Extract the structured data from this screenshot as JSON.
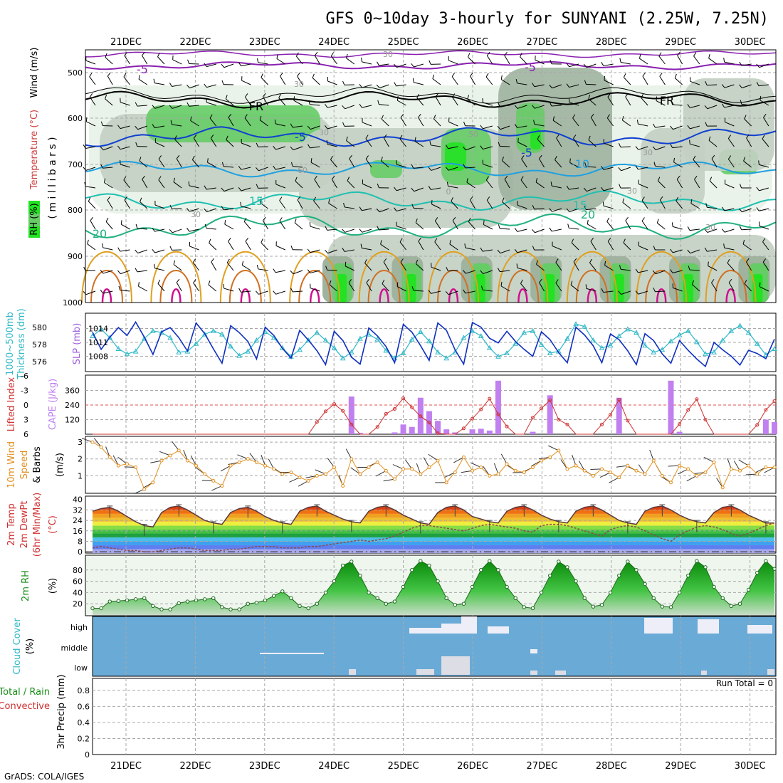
{
  "title": "GFS 0~10day 3-hourly for SUNYANI (2.25W, 7.25N)",
  "footer": "GrADS: COLA/IGES",
  "dates": [
    "21DEC",
    "22DEC",
    "23DEC",
    "24DEC",
    "25DEC",
    "26DEC",
    "27DEC",
    "28DEC",
    "29DEC",
    "30DEC"
  ],
  "colors": {
    "grid": "#a8a8a8",
    "rh1": "#e8f2e8",
    "rh2": "#c2cfc2",
    "rh3": "#9fb39f",
    "rh4": "#66cc66",
    "rh5": "#22e222",
    "slp": "#1030c0",
    "thick": "#30b8c8",
    "lifted": "#d03030",
    "cape": "#c080f0",
    "wind": "#e09020",
    "cloud_bg": "#6aaad6",
    "cloud_fill": "#eeeef8",
    "rh2m": "#1a8f1a",
    "dewpt": "#8a4c4c"
  },
  "panels": {
    "upper": {
      "label_rh": "RH (%)",
      "label_temp": "Temperature (°C)",
      "label_wind": "Wind (m/s)",
      "label_mb": "( m i l l i b a r s )",
      "levels": [
        "500",
        "600",
        "700",
        "800",
        "900",
        "1000"
      ],
      "contour_labels": [
        "-5",
        "-5",
        "FR",
        "FR",
        "-5",
        "-5",
        "-10",
        "15",
        "15",
        "20",
        "20"
      ],
      "rh_labels": [
        "30",
        "30",
        "30",
        "30",
        "30",
        "30",
        "30",
        "50",
        "60",
        "0"
      ]
    },
    "thickness": {
      "label_left": "1000~500mb",
      "label_left2": "Thickness (dm)",
      "label_right": "SLP (mb)",
      "left_ticks": [
        "580",
        "578",
        "576"
      ],
      "right_ticks": [
        "1014",
        "1011",
        "1008"
      ]
    },
    "cape": {
      "label_left": "Lifted Index",
      "label_right": "CAPE (J/kg)",
      "left_ticks": [
        "-6",
        "-3",
        "0",
        "3",
        "6"
      ],
      "right_ticks": [
        "360",
        "240",
        "120"
      ]
    },
    "wind10m": {
      "label_a": "10m Wind",
      "label_b": "Speed",
      "label_c": "& Barbs",
      "label_unit": "(m/s)",
      "ticks": [
        "3",
        "2",
        "1"
      ]
    },
    "temp2m": {
      "label_a": "2m Temp",
      "label_b": "2m DewPt",
      "label_c": "(6hr Min/Max)",
      "label_unit": "(°C)",
      "ticks": [
        "40",
        "32",
        "24",
        "16",
        "8",
        "0"
      ]
    },
    "rh2m": {
      "label": "2m RH",
      "label_unit": "(%)",
      "ticks": [
        "80",
        "60",
        "40",
        "20"
      ]
    },
    "cloud": {
      "label": "Cloud Cover",
      "label_unit": "(%)",
      "ticks": [
        "high",
        "middle",
        "low"
      ]
    },
    "precip": {
      "label_a": "Total / Rain",
      "label_b": "Convective",
      "label_unit": "3hr Precip (mm)",
      "ticks": [
        "0.8",
        "0.6",
        "0.4",
        "0.2",
        "0"
      ],
      "run_total": "Run Total = 0"
    }
  },
  "chart_data": [
    {
      "type": "line",
      "title": "SLP (mb)",
      "ylim": [
        1005,
        1017
      ],
      "values": [
        1013.2,
        1009.5,
        1012.1,
        1014.2,
        1012.5,
        1015.4,
        1012.1,
        1008.4,
        1013.3,
        1014.2,
        1012.0,
        1009.1,
        1015.2,
        1012.9,
        1009.6,
        1006.5,
        1014.6,
        1013.1,
        1011.2,
        1007.4,
        1014.3,
        1012.5,
        1009.7,
        1007.6,
        1013.6,
        1011.5,
        1009.2,
        1006.2,
        1013.4,
        1011.4,
        1007.8,
        1006.3,
        1014.1,
        1012.4,
        1010.1,
        1006.6,
        1014.9,
        1013.2,
        1010.3,
        1007.1,
        1015.2,
        1013.6,
        1009.4,
        1006.3,
        1015.3,
        1014.3,
        1011.9,
        1010.9,
        1013.4,
        1011.2,
        1009.5,
        1008.0,
        1013.3,
        1011.6,
        1008.8,
        1006.6,
        1014.3,
        1012.6,
        1010.3,
        1006.6,
        1012.8,
        1011.6,
        1009.2,
        1006.2,
        1012.9,
        1011.4,
        1008.5,
        1006.5,
        1011.4,
        1009.3,
        1007.4,
        1005.8,
        1011.0,
        1009.4,
        1008.0,
        1006.1,
        1009.3,
        1008.6,
        1007.5,
        1011.7
      ]
    },
    {
      "type": "line",
      "title": "1000~500mb Thickness (dm)",
      "ylim": [
        575,
        581.5
      ],
      "values": [
        579.0,
        579.8,
        578.8,
        577.5,
        576.9,
        577.2,
        578.7,
        579.6,
        579.4,
        578.8,
        577.1,
        577.2,
        578.1,
        579.2,
        579.6,
        579.2,
        577.8,
        576.7,
        577.2,
        578.5,
        579.5,
        578.8,
        577.6,
        576.6,
        577.4,
        578.5,
        579.4,
        578.5,
        577.6,
        576.4,
        577.1,
        578.7,
        579.2,
        578.6,
        577.3,
        576.4,
        577.0,
        578.6,
        579.5,
        578.4,
        577.1,
        576.4,
        577.1,
        578.8,
        579.6,
        579.0,
        577.6,
        576.6,
        577.0,
        578.1,
        579.4,
        579.6,
        578.0,
        577.0,
        577.2,
        578.7,
        580.4,
        580.1,
        578.5,
        577.6,
        577.9,
        579.0,
        579.8,
        579.4,
        577.9,
        577.1,
        577.4,
        578.4,
        579.1,
        579.6,
        578.3,
        576.9,
        577.1,
        578.5,
        579.6,
        580.2,
        579.4,
        578.1,
        576.8,
        577.5
      ]
    },
    {
      "type": "bar",
      "title": "CAPE (J/kg)",
      "ylim": [
        0,
        480
      ],
      "values": [
        0,
        0,
        0,
        0,
        0,
        0,
        0,
        0,
        0,
        0,
        0,
        0,
        0,
        0,
        0,
        0,
        0,
        0,
        0,
        0,
        0,
        0,
        0,
        0,
        0,
        0,
        0,
        0,
        0,
        0,
        0,
        0,
        0,
        0,
        0,
        0,
        0,
        0,
        0,
        0,
        0,
        0,
        0,
        0,
        0,
        0,
        0,
        0,
        0,
        0,
        0,
        0,
        0,
        0,
        0,
        0,
        0,
        0,
        0,
        0,
        0,
        0,
        0,
        0,
        0,
        0,
        0,
        0,
        0,
        0,
        0,
        0,
        0,
        0,
        0,
        0,
        0,
        0,
        0,
        0
      ],
      "spikes": [
        [
          30,
          310
        ],
        [
          31,
          10
        ],
        [
          35,
          15
        ],
        [
          36,
          80
        ],
        [
          37,
          60
        ],
        [
          38,
          300
        ],
        [
          39,
          190
        ],
        [
          40,
          110
        ],
        [
          41,
          40
        ],
        [
          42,
          15
        ],
        [
          44,
          40
        ],
        [
          45,
          45
        ],
        [
          46,
          30
        ],
        [
          47,
          440
        ],
        [
          51,
          20
        ],
        [
          53,
          320
        ],
        [
          61,
          300
        ],
        [
          67,
          440
        ],
        [
          68,
          20
        ],
        [
          69,
          0
        ],
        [
          70,
          0
        ],
        [
          71,
          0
        ],
        [
          72,
          0
        ],
        [
          73,
          0
        ],
        [
          74,
          0
        ],
        [
          75,
          0
        ],
        [
          76,
          0
        ],
        [
          77,
          0
        ],
        [
          78,
          120
        ],
        [
          79,
          100
        ]
      ]
    },
    {
      "type": "line",
      "title": "Lifted Index",
      "ylim": [
        -6,
        6
      ],
      "values": [
        6,
        6,
        6,
        6,
        6,
        6,
        6,
        6,
        6,
        6,
        6,
        6,
        6,
        6,
        6,
        6,
        6,
        6,
        6,
        6,
        6,
        6,
        6,
        6,
        6,
        6,
        3.5,
        1.3,
        -0.2,
        1.2,
        4.0,
        6,
        6,
        4.5,
        1.8,
        0.8,
        -1.4,
        0.5,
        2.3,
        3.6,
        5.8,
        6,
        6,
        4.8,
        2.8,
        0.9,
        -1.3,
        1.9,
        4.4,
        6,
        6,
        2.6,
        0.7,
        -1.0,
        3.0,
        4.0,
        6,
        6,
        6,
        4.0,
        2.0,
        -1.1,
        3.2,
        6,
        6,
        6,
        6,
        6,
        3.9,
        1.0,
        -1.2,
        3.0,
        6,
        6,
        6,
        6,
        6,
        4.1,
        1.0,
        -0.8
      ]
    },
    {
      "type": "line",
      "title": "10m Wind Speed (m/s)",
      "ylim": [
        0,
        3.3
      ],
      "values": [
        3.0,
        2.7,
        2.1,
        1.6,
        1.7,
        1.5,
        0.2,
        0.6,
        1.9,
        2.2,
        2.5,
        1.9,
        1.6,
        1.1,
        0.7,
        0.4,
        1.6,
        1.8,
        2.0,
        1.8,
        1.6,
        1.4,
        1.1,
        1.2,
        0.9,
        0.7,
        1.0,
        1.1,
        1.5,
        0.4,
        2.0,
        1.1,
        1.5,
        1.8,
        1.3,
        0.8,
        1.4,
        1.4,
        1.1,
        1.5,
        1.9,
        0.6,
        1.2,
        2.1,
        1.3,
        1.5,
        1.0,
        1.1,
        1.7,
        1.3,
        1.2,
        1.5,
        1.9,
        2.1,
        2.5,
        1.4,
        1.6,
        1.3,
        1.0,
        1.4,
        1.2,
        0.9,
        1.6,
        1.3,
        1.1,
        1.9,
        1.0,
        0.6,
        1.6,
        1.4,
        1.0,
        1.2,
        1.8,
        0.3,
        1.4,
        1.3,
        1.6,
        1.1,
        1.5,
        1.5
      ]
    },
    {
      "type": "area",
      "title": "2m Temp (°C)",
      "ylim": [
        -1,
        42
      ],
      "values": [
        31,
        33,
        34,
        31,
        27,
        23,
        20,
        19,
        30,
        34,
        35,
        32,
        28,
        24,
        22,
        21,
        30,
        33,
        34,
        31,
        27,
        24,
        22,
        21,
        31,
        34,
        35,
        31,
        28,
        25,
        23,
        22,
        31,
        34,
        35,
        32,
        28,
        25,
        22,
        21,
        30,
        34,
        35,
        32,
        27,
        25,
        23,
        22,
        31,
        34,
        35,
        32,
        28,
        25,
        23,
        22,
        31,
        34,
        35,
        32,
        28,
        24,
        22,
        21,
        31,
        34,
        35,
        32,
        28,
        25,
        23,
        22,
        30,
        34,
        35,
        32,
        28,
        25,
        22,
        22
      ],
      "dewpt": [
        3,
        4,
        3,
        2,
        1,
        1,
        0,
        0,
        1,
        2,
        3,
        3,
        2,
        1,
        1,
        1,
        2,
        2,
        3,
        4,
        4,
        4,
        3,
        3,
        3,
        4,
        4,
        5,
        6,
        7,
        8,
        9,
        8,
        9,
        10,
        12,
        15,
        18,
        20,
        20,
        19,
        18,
        17,
        16,
        18,
        20,
        21,
        20,
        19,
        18,
        16,
        15,
        20,
        21,
        21,
        20,
        18,
        16,
        14,
        12,
        17,
        19,
        20,
        19,
        16,
        13,
        10,
        8,
        13,
        16,
        19,
        20,
        19,
        17,
        14,
        12,
        14,
        17,
        20,
        22
      ]
    },
    {
      "type": "area",
      "title": "2m RH (%)",
      "ylim": [
        0,
        105
      ],
      "values": [
        12,
        12,
        24,
        25,
        26,
        28,
        30,
        16,
        10,
        10,
        21,
        24,
        26,
        28,
        30,
        14,
        10,
        10,
        20,
        22,
        26,
        34,
        42,
        30,
        16,
        12,
        20,
        40,
        60,
        88,
        95,
        70,
        40,
        30,
        20,
        24,
        50,
        80,
        96,
        88,
        60,
        30,
        18,
        20,
        50,
        80,
        96,
        80,
        50,
        30,
        14,
        12,
        40,
        70,
        95,
        85,
        60,
        30,
        15,
        18,
        40,
        70,
        95,
        80,
        55,
        30,
        15,
        14,
        40,
        70,
        96,
        85,
        50,
        30,
        16,
        20,
        45,
        75,
        96,
        82
      ]
    }
  ]
}
